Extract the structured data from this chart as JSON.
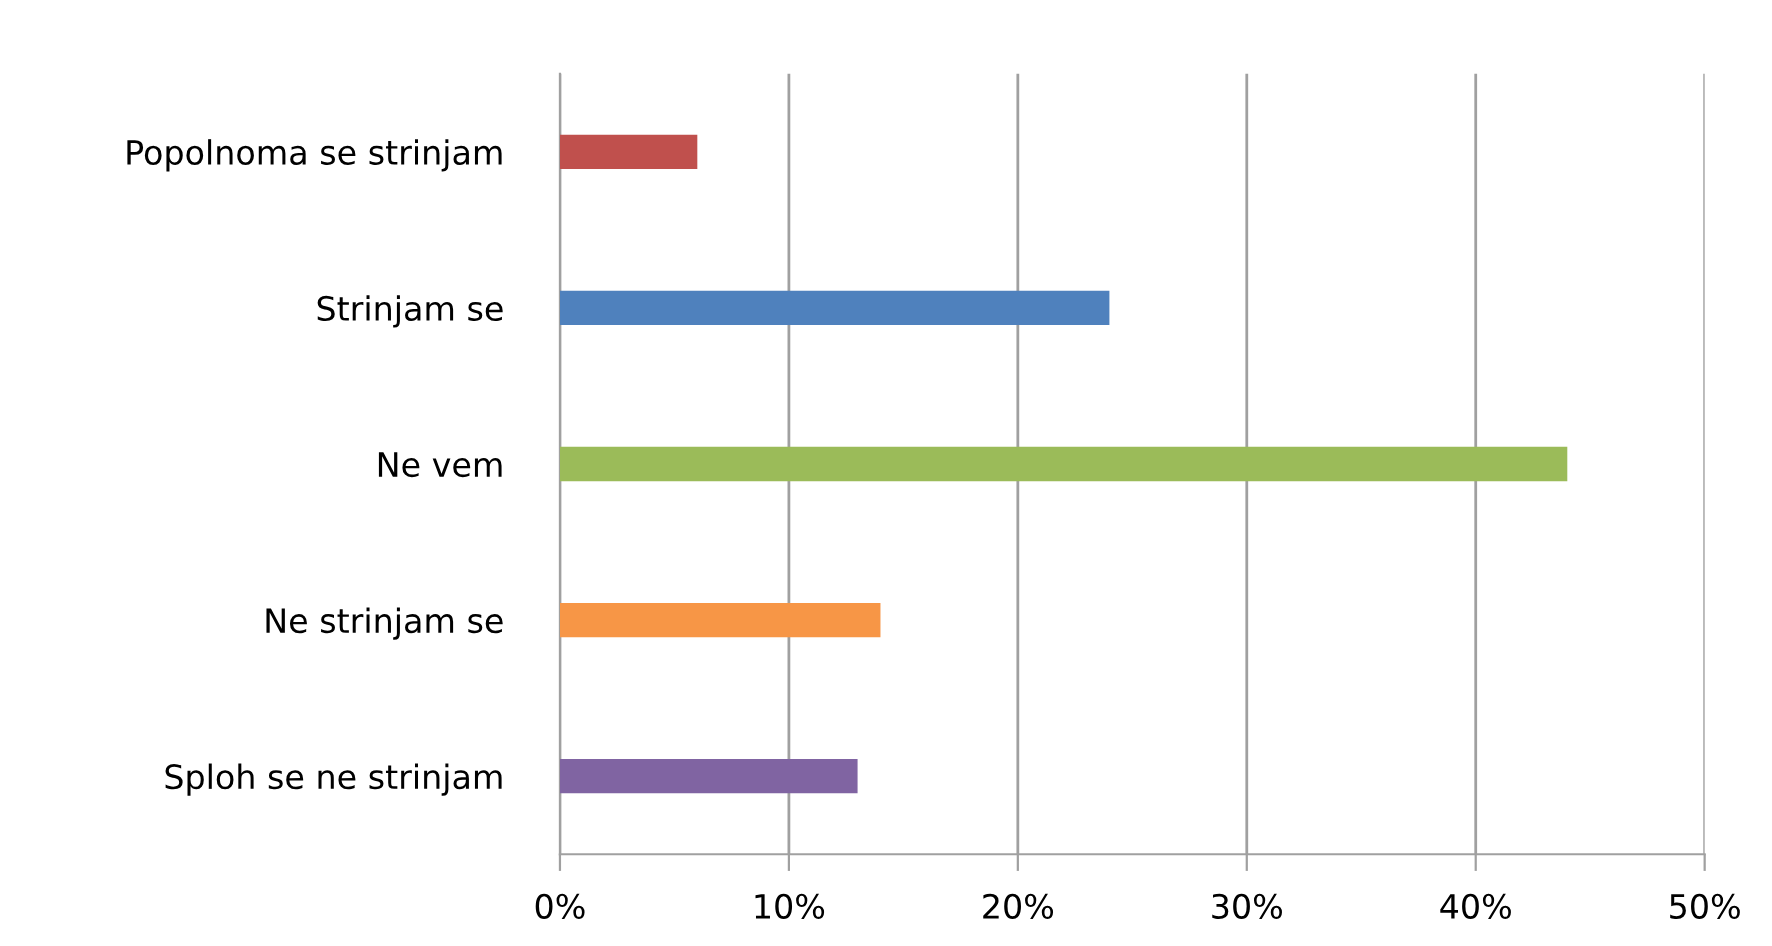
{
  "chart_data": {
    "type": "bar",
    "orientation": "horizontal",
    "categories": [
      "Popolnoma se strinjam",
      "Strinjam se",
      "Ne vem",
      "Ne strinjam se",
      "Sploh se ne strinjam"
    ],
    "values": [
      6,
      24,
      44,
      14,
      13
    ],
    "colors": [
      "#c0504d",
      "#4f81bd",
      "#9bbb59",
      "#f79646",
      "#8064a2"
    ],
    "xlim": [
      0,
      50
    ],
    "xticks": [
      {
        "value": 0,
        "label": "0%"
      },
      {
        "value": 10,
        "label": "10%"
      },
      {
        "value": 20,
        "label": "20%"
      },
      {
        "value": 30,
        "label": "30%"
      },
      {
        "value": 40,
        "label": "40%"
      },
      {
        "value": 50,
        "label": "50%"
      }
    ],
    "grid": "x",
    "legend": false
  }
}
